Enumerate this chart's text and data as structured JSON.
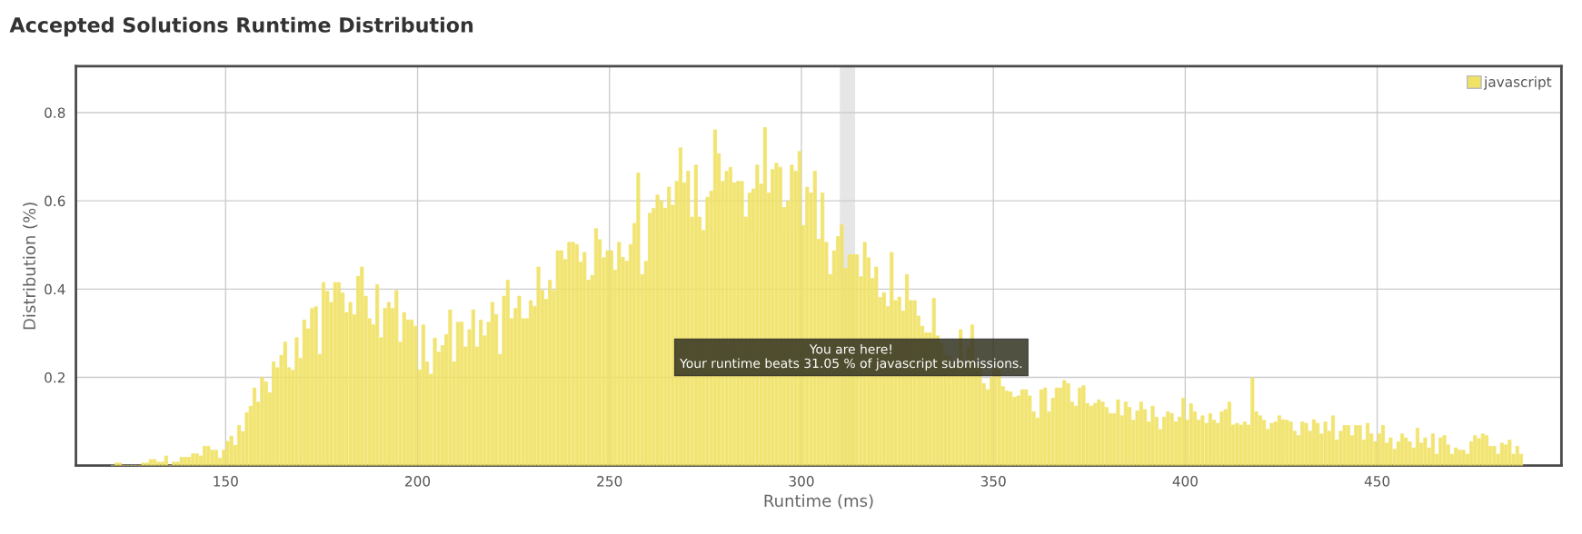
{
  "chart_data": {
    "type": "histogram",
    "title": "Accepted Solutions Runtime Distribution",
    "xlabel": "Runtime (ms)",
    "ylabel": "Distribution (%)",
    "bins": [
      120,
      121,
      122,
      123,
      124,
      125,
      126,
      127,
      128,
      129,
      130,
      131,
      132,
      133,
      134,
      135,
      136,
      137,
      138,
      139,
      140,
      141,
      142,
      143,
      144,
      145,
      146,
      147,
      148,
      149,
      150,
      151,
      152,
      153,
      154,
      155,
      156,
      157,
      158,
      159,
      160,
      161,
      162,
      163,
      164,
      165,
      166,
      167,
      168,
      169,
      170,
      171,
      172,
      173,
      174,
      175,
      176,
      177,
      178,
      179,
      180,
      181,
      182,
      183,
      184,
      185,
      186,
      187,
      188,
      189,
      190,
      191,
      192,
      193,
      194,
      195,
      196,
      197,
      198,
      199,
      200,
      201,
      202,
      203,
      204,
      205,
      206,
      207,
      208,
      209,
      210,
      211,
      212,
      213,
      214,
      215,
      216,
      217,
      218,
      219,
      220,
      221,
      222,
      223,
      224,
      225,
      226,
      227,
      228,
      229,
      230,
      231,
      232,
      233,
      234,
      235,
      236,
      237,
      238,
      239,
      240,
      241,
      242,
      243,
      244,
      245,
      246,
      247,
      248,
      249,
      250,
      251,
      252,
      253,
      254,
      255,
      256,
      257,
      258,
      259,
      260,
      261,
      262,
      263,
      264,
      265,
      266,
      267,
      268,
      269,
      270,
      271,
      272,
      273,
      274,
      275,
      276,
      277,
      278,
      279,
      280,
      281,
      282,
      283,
      284,
      285,
      286,
      287,
      288,
      289,
      290,
      291,
      292,
      293,
      294,
      295,
      296,
      297,
      298,
      299,
      300,
      301,
      302,
      303,
      304,
      305,
      306,
      307,
      308,
      309,
      310,
      311,
      312,
      313,
      314,
      315,
      316,
      317,
      318,
      319,
      320,
      321,
      322,
      323,
      324,
      325,
      326,
      327,
      328,
      329,
      330,
      331,
      332,
      333,
      334,
      335,
      336,
      337,
      338,
      339,
      340,
      341,
      342,
      343,
      344,
      345,
      346,
      347,
      348,
      349,
      350,
      351,
      352,
      353,
      354,
      355,
      356,
      357,
      358,
      359,
      360,
      361,
      362,
      363,
      364,
      365,
      366,
      367,
      368,
      369,
      370,
      371,
      372,
      373,
      374,
      375,
      376,
      377,
      378,
      379,
      380,
      381,
      382,
      383,
      384,
      385,
      386,
      387,
      388,
      389,
      390,
      391,
      392,
      393,
      394,
      395,
      396,
      397,
      398,
      399,
      400,
      401,
      402,
      403,
      404,
      405,
      406,
      407,
      408,
      409,
      410,
      411,
      412,
      413,
      414,
      415,
      416,
      417,
      418,
      419,
      420,
      421,
      422,
      423,
      424,
      425,
      426,
      427,
      428,
      429,
      430,
      431,
      432,
      433,
      434,
      435,
      436,
      437,
      438,
      439,
      440,
      441,
      442,
      443,
      444,
      445,
      446,
      447,
      448,
      449,
      450,
      451,
      452,
      453,
      454,
      455,
      456,
      457,
      458,
      459,
      460,
      461,
      462,
      463,
      464,
      465,
      466,
      467,
      468,
      469,
      470,
      471,
      472,
      473,
      474,
      475,
      476,
      477,
      478,
      479,
      480,
      481,
      482,
      483,
      484,
      485,
      486,
      487,
      488
    ],
    "series": [
      {
        "name": "javascript",
        "color": "#f0e264",
        "values": [
          0,
          0.006,
          0.006,
          0,
          0,
          0,
          0,
          0,
          0.006,
          0.006,
          0.014,
          0.014,
          0.008,
          0.008,
          0.022,
          0,
          0.008,
          0.008,
          0.019,
          0.019,
          0.019,
          0.027,
          0.027,
          0.022,
          0.044,
          0.044,
          0.035,
          0.035,
          0.017,
          0.035,
          0.055,
          0.067,
          0.046,
          0.091,
          0.077,
          0.12,
          0.135,
          0.176,
          0.144,
          0.2,
          0.19,
          0.165,
          0.235,
          0.222,
          0.25,
          0.28,
          0.222,
          0.216,
          0.29,
          0.243,
          0.33,
          0.31,
          0.356,
          0.36,
          0.252,
          0.415,
          0.395,
          0.37,
          0.415,
          0.415,
          0.391,
          0.347,
          0.37,
          0.342,
          0.429,
          0.45,
          0.384,
          0.333,
          0.319,
          0.41,
          0.29,
          0.356,
          0.37,
          0.356,
          0.397,
          0.28,
          0.347,
          0.33,
          0.33,
          0.316,
          0.217,
          0.319,
          0.235,
          0.207,
          0.289,
          0.257,
          0.272,
          0.297,
          0.353,
          0.235,
          0.325,
          0.325,
          0.269,
          0.308,
          0.353,
          0.269,
          0.33,
          0.294,
          0.325,
          0.37,
          0.342,
          0.252,
          0.384,
          0.42,
          0.333,
          0.356,
          0.384,
          0.333,
          0.333,
          0.374,
          0.361,
          0.45,
          0.397,
          0.377,
          0.42,
          0.397,
          0.487,
          0.487,
          0.467,
          0.506,
          0.506,
          0.501,
          0.461,
          0.483,
          0.42,
          0.431,
          0.537,
          0.512,
          0.471,
          0.487,
          0.487,
          0.443,
          0.506,
          0.472,
          0.463,
          0.501,
          0.549,
          0.663,
          0.433,
          0.463,
          0.572,
          0.583,
          0.613,
          0.6,
          0.583,
          0.631,
          0.59,
          0.644,
          0.72,
          0.641,
          0.667,
          0.563,
          0.681,
          0.563,
          0.533,
          0.608,
          0.622,
          0.761,
          0.707,
          0.644,
          0.667,
          0.676,
          0.641,
          0.644,
          0.644,
          0.563,
          0.618,
          0.627,
          0.681,
          0.638,
          0.766,
          0.618,
          0.671,
          0.685,
          0.676,
          0.585,
          0.599,
          0.681,
          0.667,
          0.712,
          0.544,
          0.631,
          0.618,
          0.667,
          0.513,
          0.618,
          0.506,
          0.433,
          0.487,
          0.519,
          0.546,
          0.447,
          0.478,
          0.478,
          0.478,
          0.428,
          0.506,
          0.471,
          0.424,
          0.45,
          0.381,
          0.392,
          0.36,
          0.483,
          0.374,
          0.382,
          0.35,
          0.433,
          0.374,
          0.374,
          0.339,
          0.316,
          0.301,
          0.301,
          0.379,
          0.294,
          0.276,
          0.249,
          0.249,
          0.228,
          0.228,
          0.308,
          0.228,
          0.269,
          0.319,
          0.228,
          0.228,
          0.186,
          0.172,
          0.2,
          0.221,
          0.217,
          0.179,
          0.169,
          0.167,
          0.155,
          0.158,
          0.172,
          0.172,
          0.158,
          0.122,
          0.108,
          0.172,
          0.176,
          0.122,
          0.153,
          0.176,
          0.176,
          0.193,
          0.186,
          0.144,
          0.135,
          0.176,
          0.181,
          0.141,
          0.135,
          0.141,
          0.149,
          0.144,
          0.132,
          0.118,
          0.118,
          0.149,
          0.113,
          0.144,
          0.132,
          0.103,
          0.124,
          0.144,
          0.127,
          0.099,
          0.135,
          0.11,
          0.082,
          0.11,
          0.122,
          0.118,
          0.099,
          0.11,
          0.153,
          0.103,
          0.14,
          0.122,
          0.103,
          0.113,
          0.096,
          0.118,
          0.103,
          0.096,
          0.122,
          0.127,
          0.144,
          0.092,
          0.096,
          0.092,
          0.099,
          0.092,
          0.199,
          0.122,
          0.113,
          0.103,
          0.082,
          0.096,
          0.099,
          0.113,
          0.104,
          0.103,
          0.099,
          0.078,
          0.068,
          0.099,
          0.096,
          0.078,
          0.104,
          0.096,
          0.072,
          0.099,
          0.078,
          0.113,
          0.058,
          0.078,
          0.091,
          0.091,
          0.068,
          0.091,
          0.091,
          0.058,
          0.096,
          0.072,
          0.054,
          0.072,
          0.091,
          0.051,
          0.063,
          0.037,
          0.054,
          0.072,
          0.063,
          0.054,
          0.04,
          0.085,
          0.051,
          0.063,
          0.04,
          0.072,
          0.026,
          0.063,
          0.068,
          0.047,
          0.026,
          0.04,
          0.035,
          0.035,
          0.026,
          0.054,
          0.068,
          0.061,
          0.072,
          0.068,
          0.044,
          0.044,
          0.026,
          0.051,
          0.047,
          0.058,
          0.026,
          0.044,
          0.026
        ]
      }
    ],
    "xlim": [
      111,
      498
    ],
    "ylim": [
      0,
      0.905
    ],
    "xticks": [
      150,
      200,
      250,
      300,
      350,
      400,
      450
    ],
    "yticks": [
      0.2,
      0.4,
      0.6,
      0.8
    ],
    "grid": true,
    "legend": "top right",
    "bands": [
      {
        "axis": "x",
        "from": 310,
        "to": 314,
        "color": "#e6e6e6"
      }
    ],
    "annotations": [
      {
        "text": "You are here!\nYour runtime beats 31.05 % of javascript submissions.",
        "x": 313,
        "y": 0.19
      }
    ]
  }
}
